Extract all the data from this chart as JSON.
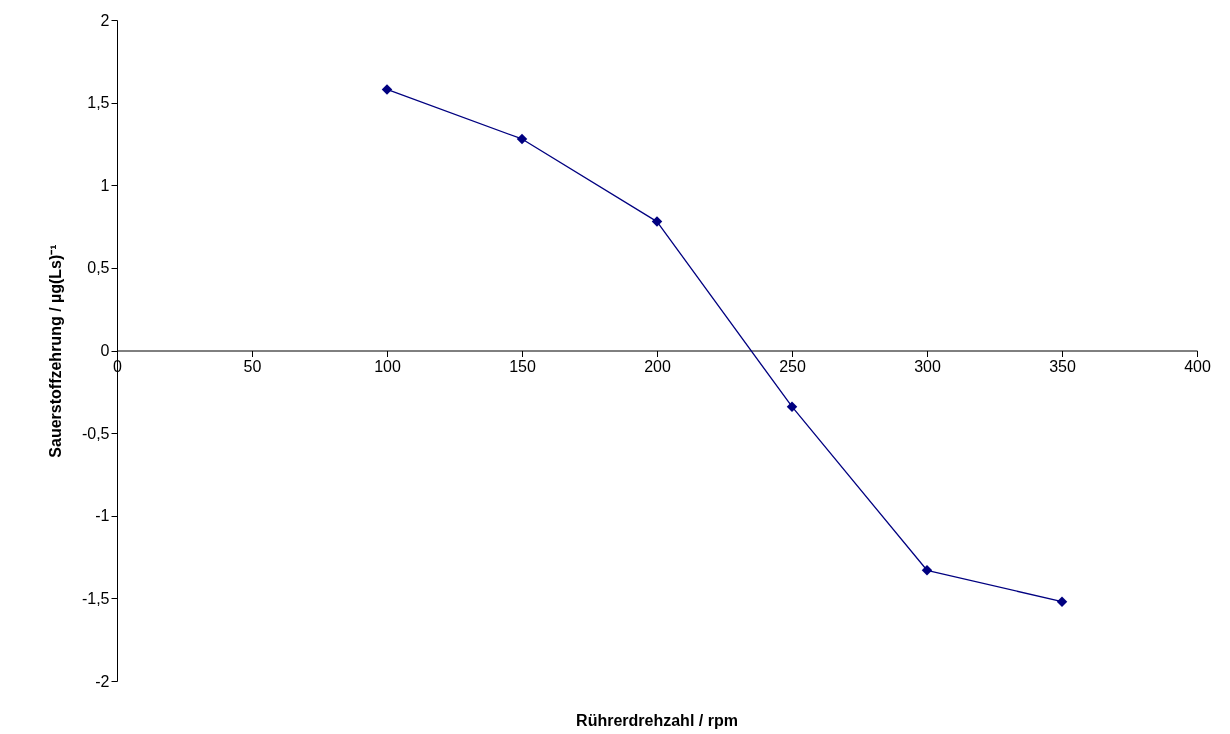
{
  "chart_data": {
    "type": "line",
    "xlabel": "Rührerdrehzahl / rpm",
    "ylabel": "Sauerstoffzehrung / µg(Ls)⁻¹",
    "x": [
      100,
      150,
      200,
      250,
      300,
      350
    ],
    "series": [
      {
        "color": "#000080",
        "values": [
          1.58,
          1.28,
          0.78,
          -0.34,
          -1.33,
          -1.52
        ]
      }
    ],
    "xlim": [
      0,
      400
    ],
    "xticks": [
      0,
      50,
      100,
      150,
      200,
      250,
      300,
      350,
      400
    ],
    "ylim": [
      -2,
      2
    ],
    "yticks": [
      -2,
      {
        "value": -1.5,
        "label": "-1,5"
      },
      -1,
      {
        "value": -0.5,
        "label": "-0,5"
      },
      0,
      {
        "value": 0.5,
        "label": "0,5"
      },
      1,
      {
        "value": 1.5,
        "label": "1,5"
      },
      2
    ],
    "grid": false,
    "marker": "diamond",
    "line_style": "solid"
  }
}
